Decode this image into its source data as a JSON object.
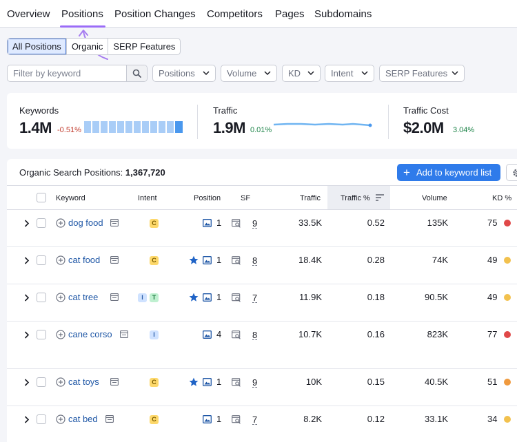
{
  "nav": {
    "tabs": [
      {
        "label": "Overview"
      },
      {
        "label": "Positions"
      },
      {
        "label": "Position Changes"
      },
      {
        "label": "Competitors"
      },
      {
        "label": "Pages"
      },
      {
        "label": "Subdomains"
      }
    ],
    "active_tab": "Positions"
  },
  "view_toggle": {
    "options": [
      {
        "label": "All Positions"
      },
      {
        "label": "Organic"
      },
      {
        "label": "SERP Features"
      }
    ],
    "selected": "All Positions"
  },
  "filters": {
    "keyword_placeholder": "Filter by keyword",
    "dropdowns": [
      {
        "label": "Positions"
      },
      {
        "label": "Volume"
      },
      {
        "label": "KD"
      },
      {
        "label": "Intent"
      },
      {
        "label": "SERP Features"
      }
    ]
  },
  "summary": [
    {
      "label": "Keywords",
      "value": "1.4M",
      "delta": "-0.51%",
      "delta_color": "#c0392b"
    },
    {
      "label": "Traffic",
      "value": "1.9M",
      "delta": "0.01%",
      "delta_color": "#1e8449"
    },
    {
      "label": "Traffic Cost",
      "value": "$2.0M",
      "delta": "3.04%",
      "delta_color": "#1e8449"
    }
  ],
  "table": {
    "title": "Organic Search Positions:",
    "count": "1,367,720",
    "add_button": "Add to keyword list",
    "columns": {
      "keyword": "Keyword",
      "intent": "Intent",
      "position": "Position",
      "sf": "SF",
      "traffic": "Traffic",
      "traffic_pct": "Traffic %",
      "volume": "Volume",
      "kd": "KD %"
    },
    "rows": [
      {
        "keyword": "dog food",
        "intent": [
          "C"
        ],
        "starred": false,
        "position": "1",
        "sf": "9",
        "traffic": "33.5K",
        "traffic_pct": "0.52",
        "volume": "135K",
        "kd": "75",
        "kd_color": "#e04848"
      },
      {
        "keyword": "cat food",
        "intent": [
          "C"
        ],
        "starred": true,
        "position": "1",
        "sf": "8",
        "traffic": "18.4K",
        "traffic_pct": "0.28",
        "volume": "74K",
        "kd": "49",
        "kd_color": "#f2c14e"
      },
      {
        "keyword": "cat tree",
        "intent": [
          "I",
          "T"
        ],
        "starred": true,
        "position": "1",
        "sf": "7",
        "traffic": "11.9K",
        "traffic_pct": "0.18",
        "volume": "90.5K",
        "kd": "49",
        "kd_color": "#f2c14e"
      },
      {
        "keyword": "cane corso",
        "intent": [
          "I"
        ],
        "starred": false,
        "position": "4",
        "sf": "8",
        "traffic": "10.7K",
        "traffic_pct": "0.16",
        "volume": "823K",
        "kd": "77",
        "kd_color": "#e04848"
      },
      {
        "keyword": "cat toys",
        "intent": [
          "C"
        ],
        "starred": true,
        "position": "1",
        "sf": "9",
        "traffic": "10K",
        "traffic_pct": "0.15",
        "volume": "40.5K",
        "kd": "51",
        "kd_color": "#f09a3e"
      },
      {
        "keyword": "cat bed",
        "intent": [
          "C"
        ],
        "starred": false,
        "position": "1",
        "sf": "7",
        "traffic": "8.2K",
        "traffic_pct": "0.12",
        "volume": "33.1K",
        "kd": "34",
        "kd_color": "#f2c14e"
      }
    ]
  }
}
